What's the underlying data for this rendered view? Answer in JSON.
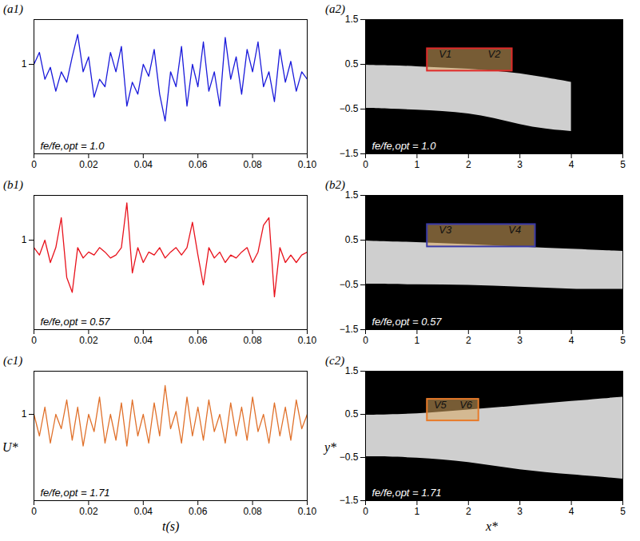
{
  "chart_data": [
    {
      "type": "line",
      "title": "(a1)",
      "annotation": "fe/fe,opt = 1.0",
      "x": [
        0,
        0.002,
        0.004,
        0.006,
        0.008,
        0.01,
        0.012,
        0.014,
        0.016,
        0.018,
        0.02,
        0.022,
        0.024,
        0.026,
        0.028,
        0.03,
        0.032,
        0.034,
        0.036,
        0.038,
        0.04,
        0.042,
        0.044,
        0.046,
        0.048,
        0.05,
        0.052,
        0.054,
        0.056,
        0.058,
        0.06,
        0.062,
        0.064,
        0.066,
        0.068,
        0.07,
        0.072,
        0.074,
        0.076,
        0.078,
        0.08,
        0.082,
        0.084,
        0.086,
        0.088,
        0.09,
        0.092,
        0.094,
        0.096,
        0.098,
        0.1
      ],
      "series": [
        {
          "name": "U*",
          "color": "#1a1adb",
          "values": [
            1.0,
            1.08,
            0.9,
            0.98,
            0.82,
            0.95,
            0.88,
            1.05,
            1.2,
            0.95,
            1.05,
            0.78,
            0.9,
            0.85,
            1.08,
            0.95,
            1.12,
            0.72,
            0.88,
            0.8,
            1.0,
            0.92,
            1.1,
            0.8,
            0.62,
            0.95,
            0.85,
            1.12,
            0.72,
            1.0,
            0.85,
            1.15,
            0.82,
            0.95,
            0.72,
            1.18,
            0.9,
            1.05,
            0.8,
            1.1,
            0.95,
            1.15,
            0.85,
            0.95,
            0.75,
            1.1,
            0.88,
            1.02,
            0.82,
            0.95,
            0.9
          ]
        }
      ],
      "xlim": [
        0,
        0.1
      ],
      "xticks": [
        0,
        0.02,
        0.04,
        0.06,
        0.08,
        {
          "value": 0.1,
          "label": "0.10"
        }
      ],
      "ylim": [
        0.4,
        1.3
      ],
      "yticks": [
        1
      ]
    },
    {
      "type": "image",
      "title": "(a2)",
      "annotation": "fe/fe,opt = 1.0",
      "jet": {
        "x": [
          0,
          0.5,
          1,
          1.5,
          2,
          2.5,
          3,
          3.5,
          4
        ],
        "upper": [
          0.48,
          0.47,
          0.45,
          0.42,
          0.4,
          0.35,
          0.3,
          0.2,
          0.1
        ],
        "lower": [
          -0.48,
          -0.5,
          -0.52,
          -0.55,
          -0.6,
          -0.7,
          -0.85,
          -0.95,
          -1.0
        ],
        "color": "#cfcfcf"
      },
      "box": {
        "x1": 1.2,
        "x2": 2.85,
        "y1": 0.35,
        "y2": 0.85,
        "color": "#e02a2a"
      },
      "vortices": [
        {
          "label": "V1",
          "x": 1.55,
          "y": 0.72
        },
        {
          "label": "V2",
          "x": 2.5,
          "y": 0.72
        }
      ],
      "xlim": [
        0,
        5
      ],
      "xticks": [
        0,
        1,
        2,
        3,
        4,
        5
      ],
      "ylim": [
        -1.5,
        1.5
      ],
      "yticks": [
        {
          "value": -1.5,
          "label": "−1.5"
        },
        {
          "value": -0.5,
          "label": "−0.5"
        },
        0.5,
        1.5
      ]
    },
    {
      "type": "line",
      "title": "(b1)",
      "annotation": "fe/fe,opt = 0.57",
      "x": [
        0,
        0.002,
        0.004,
        0.006,
        0.008,
        0.01,
        0.012,
        0.014,
        0.016,
        0.018,
        0.02,
        0.022,
        0.024,
        0.026,
        0.028,
        0.03,
        0.032,
        0.034,
        0.036,
        0.038,
        0.04,
        0.042,
        0.044,
        0.046,
        0.048,
        0.05,
        0.052,
        0.054,
        0.056,
        0.058,
        0.06,
        0.062,
        0.064,
        0.066,
        0.068,
        0.07,
        0.072,
        0.074,
        0.076,
        0.078,
        0.08,
        0.082,
        0.084,
        0.086,
        0.088,
        0.09,
        0.092,
        0.094,
        0.096,
        0.098,
        0.1
      ],
      "series": [
        {
          "name": "U*",
          "color": "#e8121c",
          "values": [
            0.95,
            0.9,
            1.0,
            0.85,
            0.95,
            1.15,
            0.75,
            0.65,
            0.95,
            0.88,
            0.92,
            0.9,
            0.95,
            0.92,
            0.88,
            0.9,
            0.95,
            1.25,
            0.78,
            0.95,
            0.85,
            0.92,
            0.9,
            0.95,
            0.88,
            0.92,
            0.95,
            0.9,
            0.95,
            1.12,
            0.9,
            0.7,
            0.95,
            0.88,
            0.92,
            0.85,
            0.9,
            0.88,
            0.92,
            0.95,
            0.85,
            0.92,
            1.1,
            1.15,
            0.62,
            0.95,
            0.85,
            0.9,
            0.85,
            0.9,
            0.92
          ]
        }
      ],
      "xlim": [
        0,
        0.1
      ],
      "xticks": [
        0,
        0.02,
        0.04,
        0.06,
        0.08,
        {
          "value": 0.1,
          "label": "0.10"
        }
      ],
      "ylim": [
        0.4,
        1.3
      ],
      "yticks": [
        1
      ]
    },
    {
      "type": "image",
      "title": "(b2)",
      "annotation": "fe/fe,opt = 0.57",
      "jet": {
        "x": [
          0,
          1,
          2,
          3,
          4,
          5
        ],
        "upper": [
          0.48,
          0.45,
          0.4,
          0.35,
          0.3,
          0.25
        ],
        "lower": [
          -0.48,
          -0.5,
          -0.5,
          -0.55,
          -0.6,
          -0.6
        ],
        "color": "#cfcfcf"
      },
      "box": {
        "x1": 1.2,
        "x2": 3.3,
        "y1": 0.35,
        "y2": 0.85,
        "color": "#3a3aa8"
      },
      "vortices": [
        {
          "label": "V3",
          "x": 1.55,
          "y": 0.72
        },
        {
          "label": "V4",
          "x": 2.9,
          "y": 0.72
        }
      ],
      "xlim": [
        0,
        5
      ],
      "xticks": [
        0,
        1,
        2,
        3,
        4,
        5
      ],
      "ylim": [
        -1.5,
        1.5
      ],
      "yticks": [
        {
          "value": -1.5,
          "label": "−1.5"
        },
        {
          "value": -0.5,
          "label": "−0.5"
        },
        0.5,
        1.5
      ]
    },
    {
      "type": "line",
      "title": "(c1)",
      "annotation": "fe/fe,opt = 1.71",
      "xlabel": "t(s)",
      "ylabel": "U*",
      "x": [
        0,
        0.002,
        0.004,
        0.006,
        0.008,
        0.01,
        0.012,
        0.014,
        0.016,
        0.018,
        0.02,
        0.022,
        0.024,
        0.026,
        0.028,
        0.03,
        0.032,
        0.034,
        0.036,
        0.038,
        0.04,
        0.042,
        0.044,
        0.046,
        0.048,
        0.05,
        0.052,
        0.054,
        0.056,
        0.058,
        0.06,
        0.062,
        0.064,
        0.066,
        0.068,
        0.07,
        0.072,
        0.074,
        0.076,
        0.078,
        0.08,
        0.082,
        0.084,
        0.086,
        0.088,
        0.09,
        0.092,
        0.094,
        0.096,
        0.098,
        0.1
      ],
      "series": [
        {
          "name": "U*",
          "color": "#e0702a",
          "values": [
            1.0,
            0.85,
            1.05,
            0.8,
            1.0,
            0.9,
            1.1,
            0.82,
            1.05,
            0.78,
            1.0,
            0.88,
            1.12,
            0.8,
            1.0,
            0.82,
            1.08,
            0.78,
            1.1,
            0.85,
            1.0,
            0.8,
            1.08,
            0.85,
            1.2,
            0.9,
            1.02,
            0.8,
            1.12,
            0.85,
            1.05,
            0.82,
            1.1,
            0.88,
            1.0,
            0.8,
            1.08,
            0.85,
            1.05,
            0.82,
            1.12,
            0.88,
            1.0,
            0.8,
            1.08,
            0.85,
            1.05,
            0.82,
            1.1,
            0.9,
            1.0
          ]
        }
      ],
      "xlim": [
        0,
        0.1
      ],
      "xticks": [
        0,
        0.02,
        0.04,
        0.06,
        0.08,
        {
          "value": 0.1,
          "label": "0.10"
        }
      ],
      "ylim": [
        0.4,
        1.3
      ],
      "yticks": [
        1
      ]
    },
    {
      "type": "image",
      "title": "(c2)",
      "annotation": "fe/fe,opt = 1.71",
      "xlabel": "x*",
      "ylabel": "y*",
      "jet": {
        "x": [
          0,
          1,
          2,
          3,
          4,
          5
        ],
        "upper": [
          0.48,
          0.5,
          0.6,
          0.7,
          0.8,
          0.9
        ],
        "lower": [
          -0.48,
          -0.5,
          -0.6,
          -0.8,
          -0.9,
          -1.0
        ],
        "color": "#cfcfcf"
      },
      "box": {
        "x1": 1.2,
        "x2": 2.2,
        "y1": 0.35,
        "y2": 0.85,
        "color": "#e87b2a"
      },
      "vortices": [
        {
          "label": "V5",
          "x": 1.45,
          "y": 0.72
        },
        {
          "label": "V6",
          "x": 1.95,
          "y": 0.72
        }
      ],
      "xlim": [
        0,
        5
      ],
      "xticks": [
        0,
        1,
        2,
        3,
        4,
        5
      ],
      "ylim": [
        -1.5,
        1.5
      ],
      "yticks": [
        {
          "value": -1.5,
          "label": "−1.5"
        },
        {
          "value": -0.5,
          "label": "−0.5"
        },
        0.5,
        1.5
      ]
    }
  ]
}
